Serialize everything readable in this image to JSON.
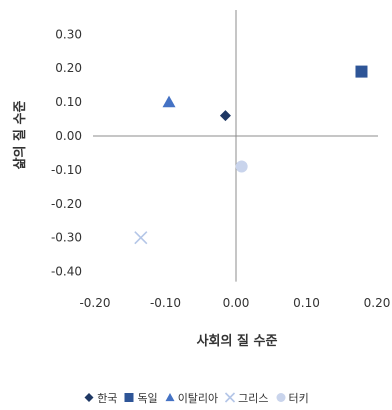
{
  "chart_data": {
    "type": "scatter",
    "title": "",
    "xlabel": "사회의 질 수준",
    "ylabel": "삶의 질 수준",
    "xlim": [
      -0.2,
      0.2
    ],
    "ylim": [
      -0.4,
      0.3
    ],
    "x_ticks": [
      "-0.20",
      "-0.10",
      "0.00",
      "0.10",
      "0.20"
    ],
    "y_ticks": [
      "0.30",
      "0.20",
      "0.10",
      "0.00",
      "-0.10",
      "-0.20",
      "-0.30",
      "-0.40"
    ],
    "grid": false,
    "legend_position": "bottom",
    "series": [
      {
        "name": "한국",
        "marker": "diamond",
        "color": "#1F3864",
        "x": -0.015,
        "y": 0.06
      },
      {
        "name": "독일",
        "marker": "square",
        "color": "#2E5597",
        "x": 0.178,
        "y": 0.19
      },
      {
        "name": "이탈리아",
        "marker": "triangle",
        "color": "#4472C4",
        "x": -0.095,
        "y": 0.1
      },
      {
        "name": "그리스",
        "marker": "x",
        "color": "#B4C6E7",
        "x": -0.135,
        "y": -0.3
      },
      {
        "name": "터키",
        "marker": "circle",
        "color": "#C9D4EC",
        "x": 0.008,
        "y": -0.09
      }
    ]
  }
}
